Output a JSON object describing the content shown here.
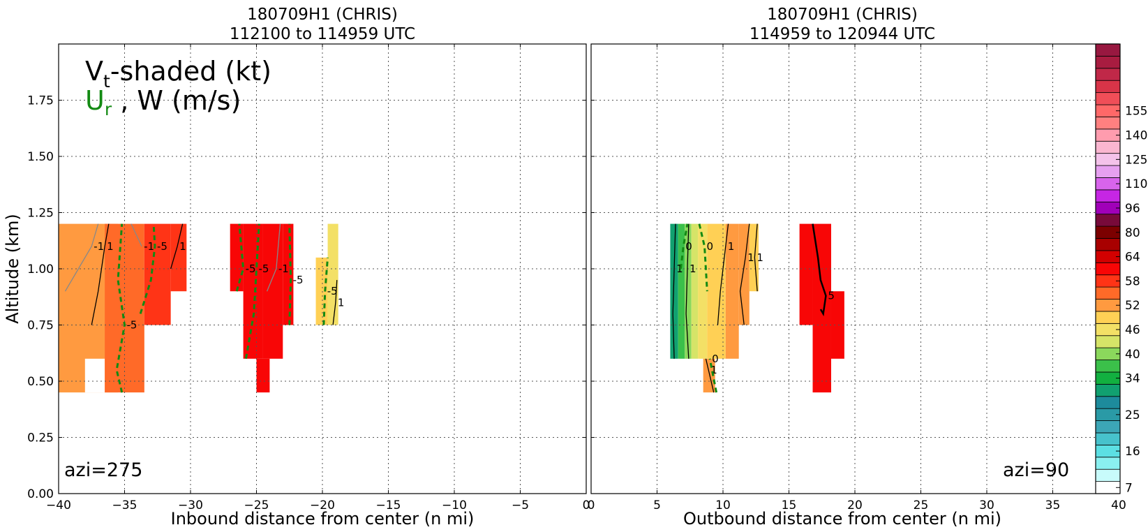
{
  "chart_data": [
    {
      "type": "contour",
      "title": [
        "180709H1 (CHRIS)",
        "112100 to 114959 UTC"
      ],
      "xlabel": "Inbound distance from center (n mi)",
      "ylabel": "Altitude (km)",
      "xlim": [
        -40,
        0
      ],
      "ylim": [
        0,
        2.0
      ],
      "xticks": [
        -40,
        -35,
        -30,
        -25,
        -20,
        -15,
        -10,
        -5,
        0
      ],
      "xticklabels": [
        "−40",
        "−35",
        "−30",
        "−25",
        "−20",
        "−15",
        "−10",
        "−5",
        "0"
      ],
      "yticks": [
        0.0,
        0.25,
        0.5,
        0.75,
        1.0,
        1.25,
        1.5,
        1.75
      ],
      "yticklabels": [
        "0.00",
        "0.25",
        "0.50",
        "0.75",
        "1.00",
        "1.25",
        "1.50",
        "1.75"
      ],
      "grid": true,
      "annotation": "azi=275",
      "legend_text": {
        "vt_main": "V",
        "vt_sub": "t",
        "vt_rest": "-shaded (kt)",
        "ur_main": "U",
        "ur_sub": "r",
        "ur_rest": " , W (m/s)"
      },
      "shaded_cells": [
        {
          "x": [
            -40,
            -35.5
          ],
          "y": [
            0.45,
            1.2
          ],
          "vt": 48
        },
        {
          "x": [
            -38,
            -36.5
          ],
          "y": [
            0.45,
            0.6
          ],
          "vt": 0
        },
        {
          "x": [
            -36.5,
            -33.5
          ],
          "y": [
            0.45,
            1.2
          ],
          "vt": 51
        },
        {
          "x": [
            -33.5,
            -31.5
          ],
          "y": [
            0.75,
            1.2
          ],
          "vt": 52
        },
        {
          "x": [
            -31.5,
            -30.3
          ],
          "y": [
            0.9,
            1.2
          ],
          "vt": 54
        },
        {
          "x": [
            -27,
            -26
          ],
          "y": [
            0.9,
            1.2
          ],
          "vt": 55
        },
        {
          "x": [
            -26,
            -24.5
          ],
          "y": [
            0.6,
            1.2
          ],
          "vt": 57
        },
        {
          "x": [
            -25,
            -24
          ],
          "y": [
            0.45,
            0.6
          ],
          "vt": 57
        },
        {
          "x": [
            -24.5,
            -23
          ],
          "y": [
            0.6,
            1.2
          ],
          "vt": 56
        },
        {
          "x": [
            -23,
            -22.2
          ],
          "y": [
            0.75,
            1.2
          ],
          "vt": 55
        },
        {
          "x": [
            -20.5,
            -19.6
          ],
          "y": [
            0.75,
            1.05
          ],
          "vt": 44
        },
        {
          "x": [
            -19.6,
            -18.8
          ],
          "y": [
            0.75,
            1.2
          ],
          "vt": 41
        }
      ],
      "contours": [
        {
          "label": "-1",
          "kind": "W",
          "points": [
            [
              -39.5,
              0.9
            ],
            [
              -38.5,
              1.0
            ],
            [
              -37.5,
              1.1
            ],
            [
              -37,
              1.2
            ]
          ]
        },
        {
          "label": "1",
          "kind": "W",
          "points": [
            [
              -37.5,
              0.75
            ],
            [
              -37,
              0.9
            ],
            [
              -36.5,
              1.1
            ],
            [
              -36.2,
              1.2
            ]
          ]
        },
        {
          "label": "-1",
          "kind": "W",
          "points": [
            [
              -34.5,
              1.2
            ],
            [
              -33.7,
              1.1
            ]
          ]
        },
        {
          "label": "1",
          "kind": "W",
          "points": [
            [
              -31.5,
              1.0
            ],
            [
              -31,
              1.1
            ],
            [
              -30.6,
              1.2
            ]
          ]
        },
        {
          "label": "-5",
          "kind": "Ur",
          "points": [
            [
              -35.2,
              0.45
            ],
            [
              -35.6,
              0.55
            ],
            [
              -35,
              0.75
            ],
            [
              -35.5,
              0.95
            ],
            [
              -35.2,
              1.2
            ]
          ]
        },
        {
          "label": "-5",
          "kind": "Ur",
          "points": [
            [
              -33.8,
              0.8
            ],
            [
              -33,
              0.95
            ],
            [
              -32.7,
              1.1
            ],
            [
              -32.8,
              1.2
            ]
          ]
        },
        {
          "label": "-5",
          "kind": "Ur",
          "points": [
            [
              -26.5,
              0.9
            ],
            [
              -26,
              1.0
            ],
            [
              -26.3,
              1.2
            ]
          ]
        },
        {
          "label": "-5",
          "kind": "Ur",
          "points": [
            [
              -25.8,
              0.6
            ],
            [
              -25.2,
              0.8
            ],
            [
              -25,
              1.0
            ],
            [
              -24.8,
              1.2
            ]
          ]
        },
        {
          "label": "-5",
          "kind": "Ur",
          "points": [
            [
              -22.5,
              0.75
            ],
            [
              -22.4,
              0.95
            ],
            [
              -22.5,
              1.2
            ]
          ]
        },
        {
          "label": "-1",
          "kind": "W",
          "points": [
            [
              -24.2,
              0.9
            ],
            [
              -23.5,
              1.0
            ],
            [
              -23.2,
              1.2
            ]
          ]
        },
        {
          "label": "-5",
          "kind": "Ur",
          "points": [
            [
              -19.9,
              0.75
            ],
            [
              -19.8,
              0.9
            ],
            [
              -19.6,
              1.05
            ]
          ]
        },
        {
          "label": "1",
          "kind": "W",
          "points": [
            [
              -19.2,
              0.75
            ],
            [
              -19,
              0.85
            ],
            [
              -18.9,
              0.95
            ]
          ]
        }
      ]
    },
    {
      "type": "contour",
      "title": [
        "180709H1 (CHRIS)",
        "114959 to 120944 UTC"
      ],
      "xlabel": "Outbound distance from center (n mi)",
      "xlim": [
        0,
        40
      ],
      "ylim": [
        0,
        2.0
      ],
      "xticks": [
        0,
        5,
        10,
        15,
        20,
        25,
        30,
        35,
        40
      ],
      "xticklabels": [
        "0",
        "5",
        "10",
        "15",
        "20",
        "25",
        "30",
        "35",
        "40"
      ],
      "grid": true,
      "annotation": "azi=90",
      "shaded_cells": [
        {
          "x": [
            6,
            6.6
          ],
          "y": [
            0.6,
            1.2
          ],
          "vt": 27
        },
        {
          "x": [
            6.6,
            7.1
          ],
          "y": [
            0.6,
            1.2
          ],
          "vt": 31
        },
        {
          "x": [
            7.1,
            7.6
          ],
          "y": [
            0.6,
            1.2
          ],
          "vt": 34
        },
        {
          "x": [
            7.6,
            8.1
          ],
          "y": [
            0.6,
            1.2
          ],
          "vt": 37
        },
        {
          "x": [
            8.1,
            8.8
          ],
          "y": [
            0.6,
            1.2
          ],
          "vt": 40
        },
        {
          "x": [
            8.5,
            9.4
          ],
          "y": [
            0.45,
            0.6
          ],
          "vt": 46
        },
        {
          "x": [
            8.8,
            10.2
          ],
          "y": [
            0.6,
            1.2
          ],
          "vt": 43
        },
        {
          "x": [
            10.2,
            11.2
          ],
          "y": [
            0.6,
            1.2
          ],
          "vt": 46
        },
        {
          "x": [
            11.2,
            12
          ],
          "y": [
            0.75,
            1.2
          ],
          "vt": 46
        },
        {
          "x": [
            12,
            12.7
          ],
          "y": [
            0.9,
            1.2
          ],
          "vt": 44
        },
        {
          "x": [
            15.8,
            16.8
          ],
          "y": [
            0.75,
            1.2
          ],
          "vt": 55
        },
        {
          "x": [
            16.8,
            18.2
          ],
          "y": [
            0.45,
            1.2
          ],
          "vt": 56
        },
        {
          "x": [
            18.2,
            19.2
          ],
          "y": [
            0.6,
            0.9
          ],
          "vt": 56
        }
      ],
      "contours": [
        {
          "label": "1",
          "kind": "W",
          "points": [
            [
              6.3,
              0.6
            ],
            [
              6.2,
              0.8
            ],
            [
              6.3,
              1.0
            ],
            [
              6.4,
              1.2
            ]
          ]
        },
        {
          "label": "1",
          "kind": "W",
          "points": [
            [
              7.4,
              0.6
            ],
            [
              7.2,
              0.8
            ],
            [
              7.3,
              1.0
            ],
            [
              7.4,
              1.2
            ]
          ]
        },
        {
          "label": "0",
          "kind": "Ur",
          "points": [
            [
              6.8,
              1.0
            ],
            [
              7.0,
              1.1
            ],
            [
              7.3,
              1.2
            ]
          ]
        },
        {
          "label": "0",
          "kind": "Ur",
          "points": [
            [
              8.2,
              1.2
            ],
            [
              8.6,
              1.1
            ],
            [
              8.8,
              0.9
            ]
          ]
        },
        {
          "label": "1",
          "kind": "W",
          "points": [
            [
              9.3,
              0.45
            ],
            [
              8.9,
              0.55
            ],
            [
              8.7,
              0.6
            ]
          ]
        },
        {
          "label": "0",
          "kind": "Ur",
          "points": [
            [
              9.5,
              0.45
            ],
            [
              9.0,
              0.6
            ]
          ]
        },
        {
          "label": "1",
          "kind": "W",
          "points": [
            [
              9.6,
              0.75
            ],
            [
              9.8,
              0.9
            ],
            [
              10.2,
              1.1
            ],
            [
              10.4,
              1.2
            ]
          ]
        },
        {
          "label": "1",
          "kind": "W",
          "points": [
            [
              11.6,
              0.75
            ],
            [
              11.3,
              0.9
            ],
            [
              11.7,
              1.05
            ],
            [
              12.0,
              1.2
            ]
          ]
        },
        {
          "label": "1",
          "kind": "W",
          "points": [
            [
              12.6,
              0.9
            ],
            [
              12.4,
              1.05
            ],
            [
              12.6,
              1.2
            ]
          ]
        },
        {
          "label": "5",
          "kind": "W",
          "points": [
            [
              16.8,
              1.2
            ],
            [
              17.2,
              1.05
            ],
            [
              17.4,
              0.95
            ],
            [
              17.8,
              0.88
            ],
            [
              17.6,
              0.8
            ],
            [
              17.4,
              0.82
            ]
          ]
        }
      ]
    }
  ],
  "colorbar": {
    "tick_labels": [
      "7",
      "16",
      "25",
      "34",
      "40",
      "46",
      "52",
      "58",
      "64",
      "80",
      "96",
      "110",
      "125",
      "140",
      "155"
    ],
    "tick_bin_index": [
      0,
      3,
      6,
      9,
      11,
      13,
      15,
      17,
      19,
      21,
      23,
      25,
      27,
      29,
      31
    ],
    "colors": [
      "#ffffff",
      "#c8fbfb",
      "#8af0f0",
      "#5cdfe3",
      "#47c2cc",
      "#3ca6b6",
      "#2a9aa6",
      "#1d8b9c",
      "#11a070",
      "#12b040",
      "#3bc04a",
      "#8bd85c",
      "#d6e468",
      "#f3e066",
      "#ffd055",
      "#ff9a40",
      "#ff6a28",
      "#ff3416",
      "#f80606",
      "#d20000",
      "#a80000",
      "#7c0000",
      "#780a3a",
      "#a000b8",
      "#c626e4",
      "#d864ec",
      "#e6a0f0",
      "#f4c2ea",
      "#fab6d0",
      "#ff9cae",
      "#ff8080",
      "#ff6868",
      "#f04e58",
      "#d83448",
      "#c02848",
      "#a81c40",
      "#981840"
    ]
  }
}
